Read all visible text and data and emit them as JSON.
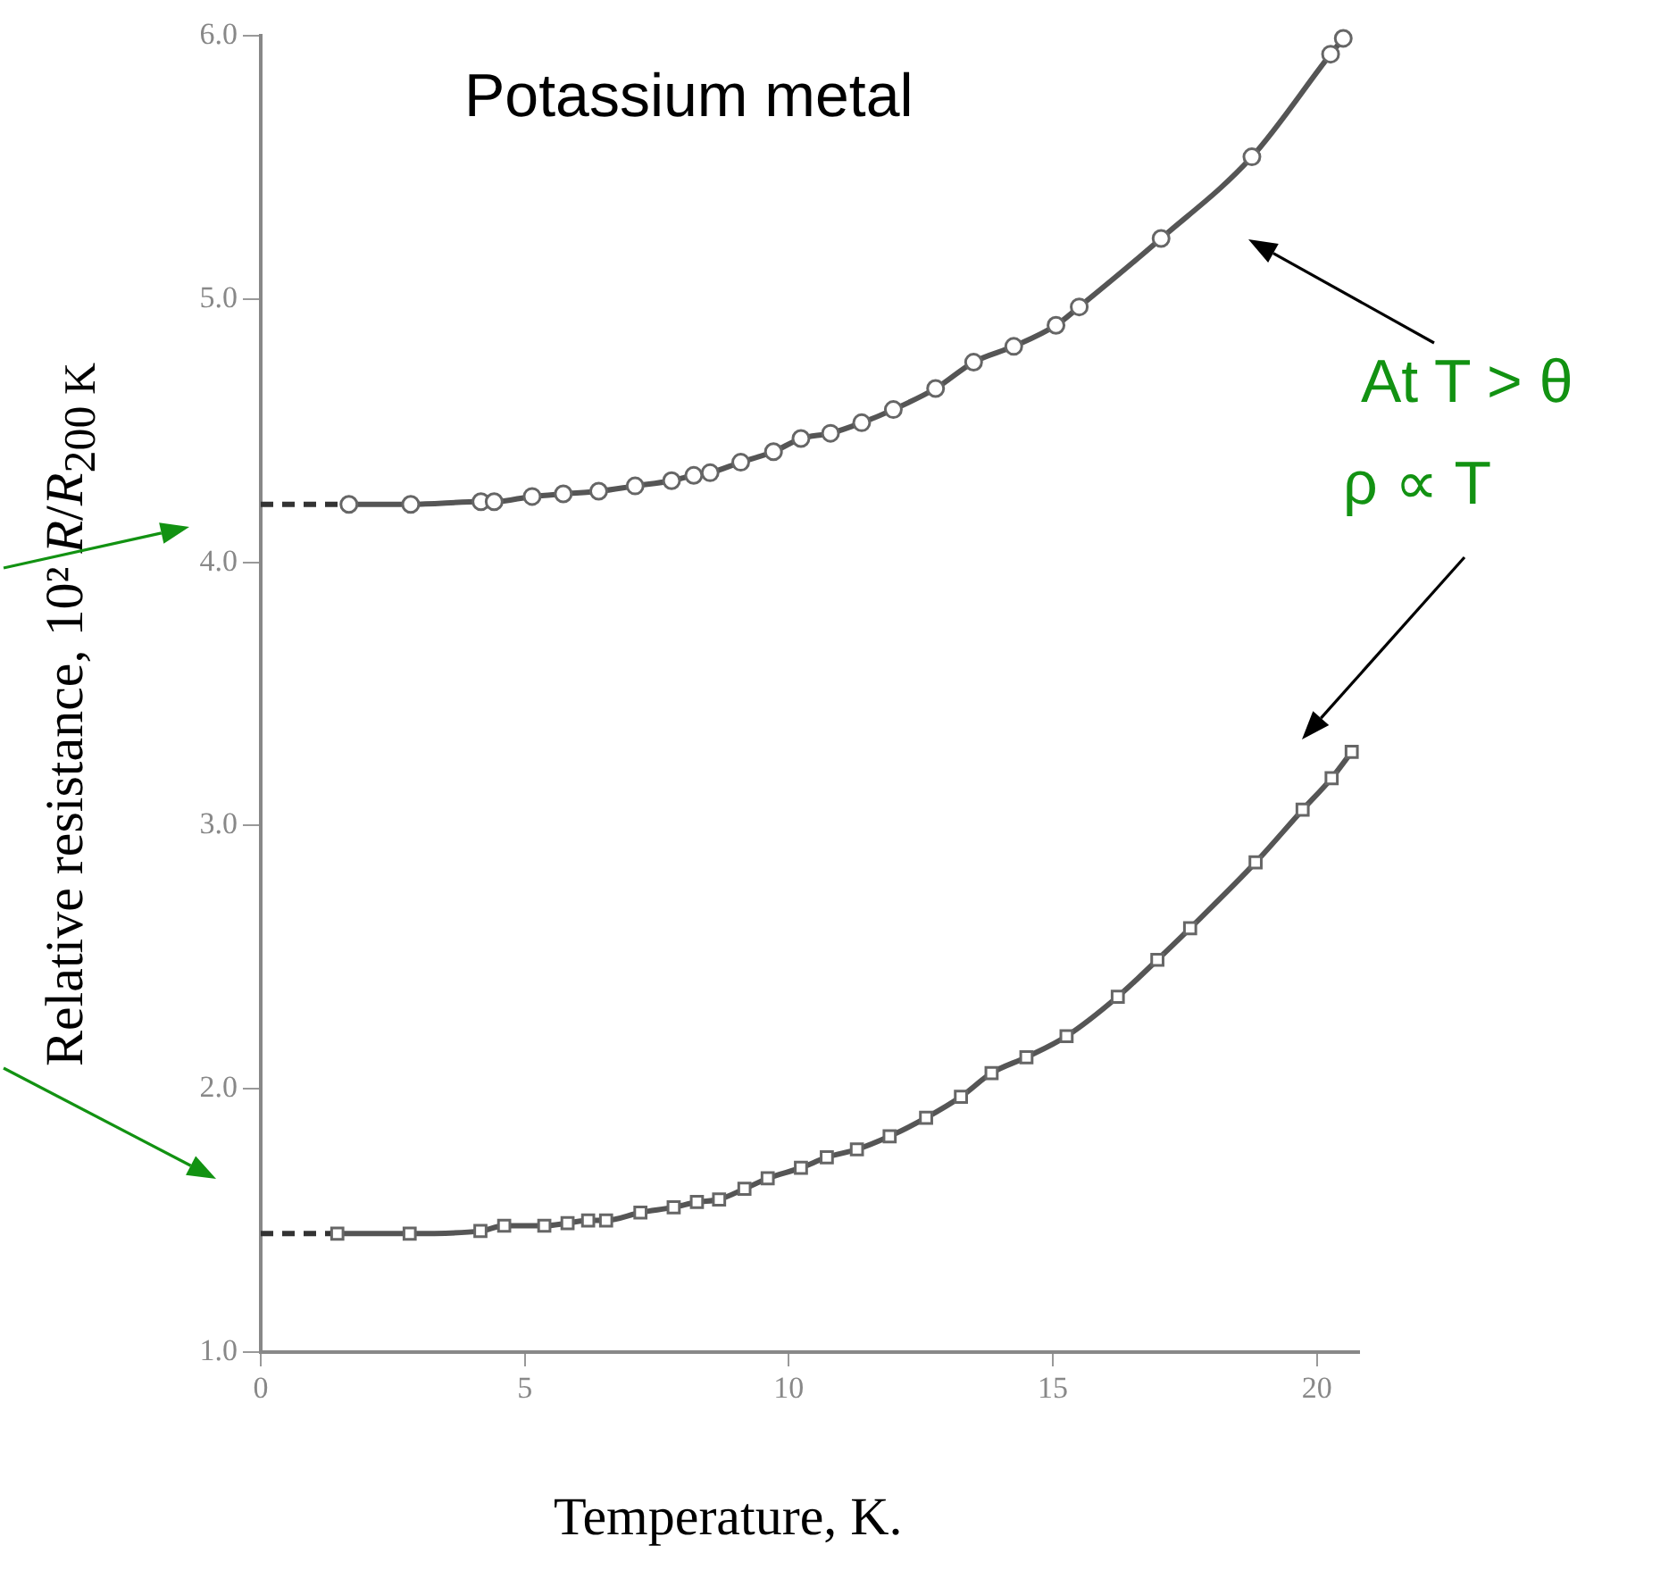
{
  "chart_data": {
    "type": "line",
    "title": "Potassium metal",
    "xlabel": "Temperature, K.",
    "ylabel": "Relative resistance, 10² R/R$_{200 K}$",
    "xlim": [
      0,
      20.8
    ],
    "xticks": [
      0,
      5,
      10,
      15,
      20
    ],
    "ylim": [
      1,
      6
    ],
    "yticks": [
      {
        "value": 1,
        "label": "1.0"
      },
      {
        "value": 2,
        "label": "2.0"
      },
      {
        "value": 3,
        "label": "3.0"
      },
      {
        "value": 4,
        "label": "4.0"
      },
      {
        "value": 5,
        "label": "5.0"
      },
      {
        "value": 6,
        "label": "6.0"
      }
    ],
    "grid": false,
    "legend": false,
    "marker": "circle",
    "line_style": "solid",
    "series": [
      {
        "color": "#555555",
        "x": [
          1.67,
          2.84,
          4.17,
          4.42,
          5.14,
          5.73,
          6.4,
          7.09,
          7.78,
          8.2,
          8.51,
          9.09,
          9.71,
          10.23,
          10.79,
          11.38,
          11.98,
          12.78,
          13.5,
          14.26,
          15.06,
          15.5,
          17.05,
          18.77,
          20.26,
          20.5
        ],
        "values": [
          4.22,
          4.22,
          4.23,
          4.23,
          4.25,
          4.26,
          4.27,
          4.29,
          4.31,
          4.33,
          4.34,
          4.38,
          4.42,
          4.47,
          4.49,
          4.53,
          4.58,
          4.66,
          4.76,
          4.82,
          4.9,
          4.97,
          5.23,
          5.54,
          5.93,
          5.99
        ]
      },
      {
        "color": "#555555",
        "marker": "square",
        "x": [
          1.45,
          2.82,
          4.16,
          4.61,
          5.37,
          5.81,
          6.2,
          6.54,
          7.19,
          7.82,
          8.26,
          8.68,
          9.16,
          9.6,
          10.23,
          10.72,
          11.29,
          11.91,
          12.6,
          13.26,
          13.84,
          14.5,
          15.26,
          16.23,
          16.98,
          17.6,
          18.84,
          19.73,
          20.28,
          20.66
        ],
        "values": [
          1.45,
          1.45,
          1.46,
          1.48,
          1.48,
          1.49,
          1.5,
          1.5,
          1.53,
          1.55,
          1.57,
          1.58,
          1.62,
          1.66,
          1.7,
          1.74,
          1.77,
          1.82,
          1.89,
          1.97,
          2.06,
          2.12,
          2.2,
          2.35,
          2.49,
          2.61,
          2.86,
          3.06,
          3.18,
          3.28
        ]
      },
      {
        "color": "#333333",
        "marker": "none",
        "line_style": "dashed",
        "x": [
          0,
          1.67
        ],
        "values": [
          4.22,
          4.22
        ]
      },
      {
        "color": "#333333",
        "marker": "none",
        "line_style": "dashed",
        "x": [
          0,
          1.45
        ],
        "values": [
          1.45,
          1.45
        ]
      }
    ],
    "annotations": [
      "At T > θ",
      "ρ ∝ T"
    ]
  }
}
